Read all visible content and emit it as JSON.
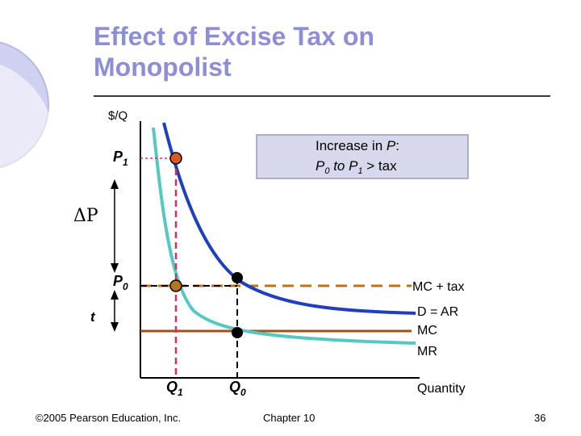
{
  "slide": {
    "title_line1": "Effect of Excise Tax on",
    "title_line2": "Monopolist",
    "footer_left": "©2005 Pearson Education, Inc.",
    "footer_center": "Chapter 10",
    "page_number": "36"
  },
  "diagram": {
    "y_axis_label": "$/Q",
    "x_axis_label": "Quantity",
    "label_p1": "P",
    "label_p1_sub": "1",
    "label_p0": "P",
    "label_p0_sub": "0",
    "label_q1": "Q",
    "label_q1_sub": "1",
    "label_q0": "Q",
    "label_q0_sub": "0",
    "label_delta_p": "ΔP",
    "label_t": "t",
    "curve_mc_tax": "MC + tax",
    "curve_demand": "D = AR",
    "curve_mc": "MC",
    "curve_mr": "MR",
    "callout": {
      "line1_prefix": "Increase in ",
      "line1_var": "P",
      "line1_suffix": ":",
      "line2_a": "P",
      "line2_a_sub": "0",
      "line2_mid": " to ",
      "line2_b": "P",
      "line2_b_sub": "1",
      "line2_suffix": " > tax"
    },
    "colors": {
      "title": "#8e8ed8",
      "demand": "#1f3fbf",
      "mr": "#55c8c4",
      "mc": "#a0501c",
      "mc_tax": "#b8731f",
      "q1_line": "#d83060",
      "point_p1": "#d85a20",
      "callout_bg": "#d8d8ec"
    }
  }
}
